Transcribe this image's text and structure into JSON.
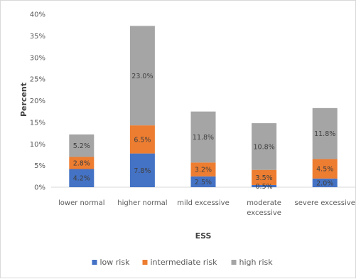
{
  "chart_data": {
    "type": "bar",
    "stacked": true,
    "categories": [
      [
        "lower normal"
      ],
      [
        "higher normal"
      ],
      [
        "mild excessive"
      ],
      [
        "moderate",
        "excessive"
      ],
      [
        "severe excessive"
      ]
    ],
    "series": [
      {
        "name": "low risk",
        "color": "#4472C4",
        "values": [
          4.2,
          7.8,
          2.5,
          0.5,
          2.0
        ],
        "labels": [
          "4.2%",
          "7.8%",
          "2.5%",
          "0.5%",
          "2.0%"
        ]
      },
      {
        "name": "intermediate risk",
        "color": "#ED7D31",
        "values": [
          2.8,
          6.5,
          3.2,
          3.5,
          4.5
        ],
        "labels": [
          "2.8%",
          "6.5%",
          "3.2%",
          "3.5%",
          "4.5%"
        ]
      },
      {
        "name": "high risk",
        "color": "#A5A5A5",
        "values": [
          5.2,
          23.0,
          11.8,
          10.8,
          11.8
        ],
        "labels": [
          "5.2%",
          "23.0%",
          "11.8%",
          "10.8%",
          "11.8%"
        ]
      }
    ],
    "y_ticks": [
      "0%",
      "5%",
      "10%",
      "15%",
      "20%",
      "25%",
      "30%",
      "35%",
      "40%"
    ],
    "ylim": [
      0,
      40
    ],
    "xlabel": "ESS",
    "ylabel": "Percent",
    "legend_position": "bottom",
    "grid": false
  }
}
